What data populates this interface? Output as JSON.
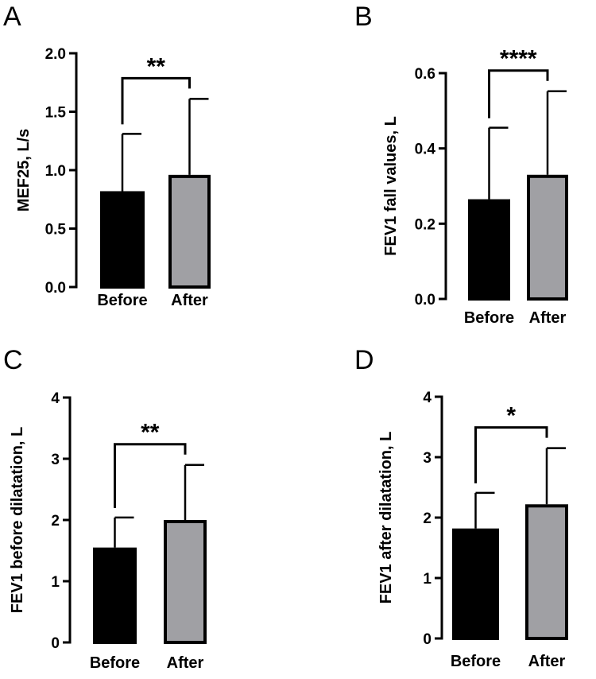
{
  "colors": {
    "before": "#000000",
    "after": "#a0a0a4",
    "stroke": "#000000"
  },
  "chart_data": [
    {
      "panel": "A",
      "type": "bar",
      "categories": [
        "Before",
        "After"
      ],
      "values": [
        0.82,
        0.96
      ],
      "errors": [
        0.49,
        0.65
      ],
      "ylabel": "MEF25, L/s",
      "xlabel": "",
      "ylim": [
        0,
        2.0
      ],
      "yticks": [
        0.0,
        0.5,
        1.0,
        1.5,
        2.0
      ],
      "ytick_labels": [
        "0.0",
        "0.5",
        "1.0",
        "1.5",
        "2.0"
      ],
      "significance": "**"
    },
    {
      "panel": "B",
      "type": "bar",
      "categories": [
        "Before",
        "After"
      ],
      "values": [
        0.265,
        0.33
      ],
      "errors": [
        0.19,
        0.222
      ],
      "ylabel": "FEV1 fall values, L",
      "xlabel": "",
      "ylim": [
        0,
        0.6
      ],
      "yticks": [
        0.0,
        0.2,
        0.4,
        0.6
      ],
      "ytick_labels": [
        "0.0",
        "0.2",
        "0.4",
        "0.6"
      ],
      "significance": "****"
    },
    {
      "panel": "C",
      "type": "bar",
      "categories": [
        "Before",
        "After"
      ],
      "values": [
        1.55,
        2.0
      ],
      "errors": [
        0.49,
        0.9
      ],
      "ylabel": "FEV1 before dilatation, L",
      "xlabel": "",
      "ylim": [
        0,
        4
      ],
      "yticks": [
        0,
        1,
        2,
        3,
        4
      ],
      "ytick_labels": [
        "0",
        "1",
        "2",
        "3",
        "4"
      ],
      "significance": "**"
    },
    {
      "panel": "D",
      "type": "bar",
      "categories": [
        "Before",
        "After"
      ],
      "values": [
        1.82,
        2.22
      ],
      "errors": [
        0.59,
        0.93
      ],
      "ylabel": "FEV1 after dilatation, L",
      "xlabel": "",
      "ylim": [
        0,
        4
      ],
      "yticks": [
        0,
        1,
        2,
        3,
        4
      ],
      "ytick_labels": [
        "0",
        "1",
        "2",
        "3",
        "4"
      ],
      "significance": "*"
    }
  ]
}
